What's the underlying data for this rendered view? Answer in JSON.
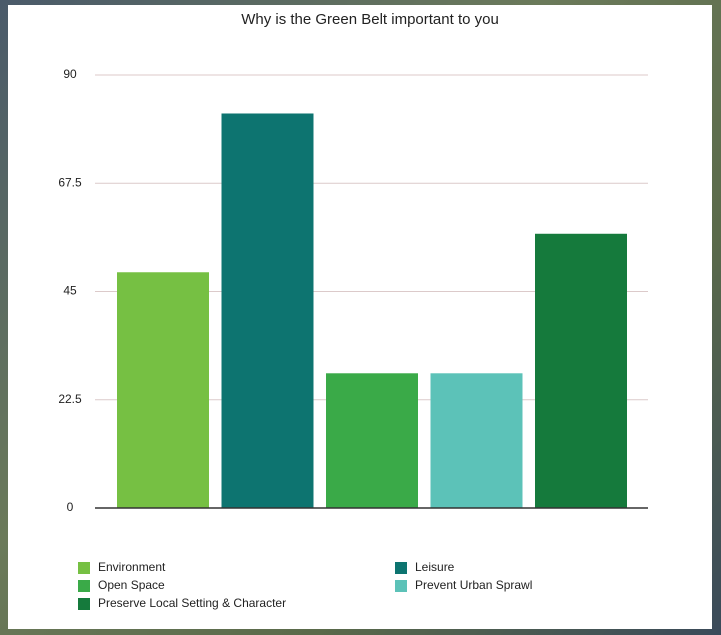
{
  "chart_data": {
    "type": "bar",
    "title": "Why is the Green Belt important to you",
    "series": [
      {
        "name": "Environment",
        "color": "#76c043",
        "values": [
          49
        ]
      },
      {
        "name": "Leisure",
        "color": "#0d7470",
        "values": [
          82
        ]
      },
      {
        "name": "Open Space",
        "color": "#3aaa48",
        "values": [
          28
        ]
      },
      {
        "name": "Prevent Urban Sprawl",
        "color": "#5cc2b8",
        "values": [
          28
        ]
      },
      {
        "name": "Preserve Local Setting & Character",
        "color": "#157a3c",
        "values": [
          57
        ]
      }
    ],
    "ylim": [
      0,
      90
    ],
    "yticks": [
      0,
      22.5,
      45,
      67.5,
      90
    ],
    "grid": true,
    "legend": "bottom"
  }
}
